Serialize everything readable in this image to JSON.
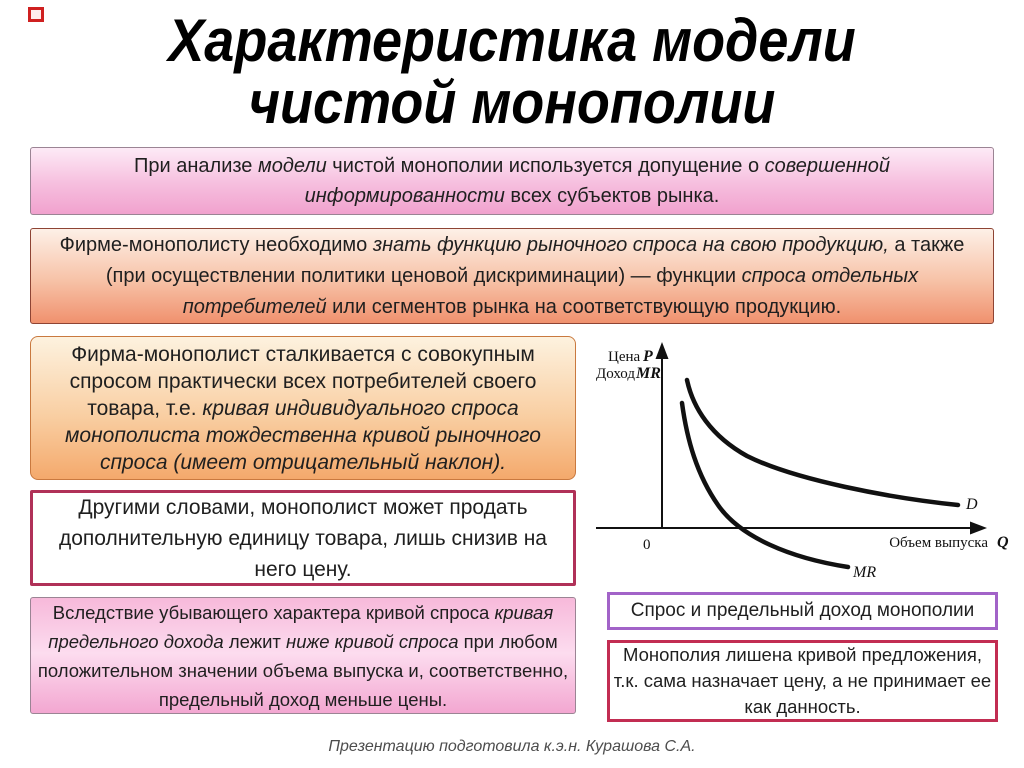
{
  "slide_title": {
    "line1": "Характеристика модели",
    "line2": "чистой монополии"
  },
  "boxes": {
    "assumption": {
      "segments": [
        {
          "t": "При анализе ",
          "i": false
        },
        {
          "t": "модели",
          "i": true
        },
        {
          "t": " чистой монополии используется допущение о ",
          "i": false
        },
        {
          "t": "совершенной информированности",
          "i": true
        },
        {
          "t": " всех субъектов рынка.",
          "i": false
        }
      ]
    },
    "market_demand_knowledge": {
      "segments": [
        {
          "t": "Фирме-монополисту необходимо ",
          "i": false
        },
        {
          "t": "знать функцию рыночного спроса на свою продукцию,",
          "i": true
        },
        {
          "t": " а также (при осуществлении политики ценовой дискриминации) — функции ",
          "i": false
        },
        {
          "t": "спроса отдельных потребителей",
          "i": true
        },
        {
          "t": " или сегментов рынка на соответствующую продукцию.",
          "i": false
        }
      ]
    },
    "aggregate_demand": {
      "segments": [
        {
          "t": "Фирма-монополист сталкивается с совокупным спросом практически всех потребителей своего товара, т.е. ",
          "i": false
        },
        {
          "t": "кривая индивидуального спроса монополиста тождественна кривой рыночного спроса (имеет отрицательный наклон).",
          "i": true
        }
      ]
    },
    "in_other_words": {
      "segments": [
        {
          "t": "Другими словами, монополист может продать дополнительную единицу товара, лишь снизив на него цену.",
          "i": false
        }
      ]
    },
    "marginal_revenue_below": {
      "segments": [
        {
          "t": "Вследствие убывающего характера кривой спроса ",
          "i": false
        },
        {
          "t": "кривая предельного дохода",
          "i": true
        },
        {
          "t": " лежит ",
          "i": false
        },
        {
          "t": "ниже кривой спроса",
          "i": true
        },
        {
          "t": " при любом положительном значении объема выпуска и, соответственно, предельный доход меньше цены.",
          "i": false
        }
      ]
    },
    "graph_caption": {
      "text": "Спрос и предельный доход монополии"
    },
    "no_supply_curve": {
      "text": "Монополия лишена кривой предложения, т.к. сама назначает цену, а не принимает ее как данность."
    }
  },
  "graph": {
    "ylabel_price": "Цена",
    "ylabel_price_sym": "P",
    "ylabel_income": "Доход",
    "ylabel_income_sym": "MR",
    "origin_label": "0",
    "xlabel": "Объем выпуска",
    "xlabel_sym": "Q",
    "demand_label": "D",
    "mr_label": "MR"
  },
  "chart_data": {
    "type": "line",
    "title": "Спрос и предельный доход монополии",
    "xlabel": "Объем выпуска Q",
    "ylabel": "Цена P / Доход MR",
    "axes_numeric": false,
    "grid": false,
    "origin_label": "0",
    "legend_position": "labels at curve ends",
    "series": [
      {
        "name": "D (кривая спроса)",
        "shape": "убывающая выпуклая гипербола, остаётся выше оси выпуска",
        "relative_points": [
          [
            0.07,
            0.95
          ],
          [
            0.12,
            0.72
          ],
          [
            0.22,
            0.5
          ],
          [
            0.38,
            0.33
          ],
          [
            0.58,
            0.22
          ],
          [
            0.78,
            0.16
          ],
          [
            0.93,
            0.13
          ]
        ]
      },
      {
        "name": "MR (кривая предельного дохода)",
        "shape": "убывает круче кривой спроса, пересекает ось выпуска и уходит ниже нуля",
        "relative_points": [
          [
            0.06,
            0.8
          ],
          [
            0.11,
            0.55
          ],
          [
            0.18,
            0.3
          ],
          [
            0.26,
            0.08
          ],
          [
            0.31,
            0.0
          ],
          [
            0.42,
            -0.14
          ],
          [
            0.55,
            -0.25
          ]
        ]
      }
    ]
  },
  "footer": {
    "credit": "Презентацию подготовила к.э.н. Курашова С.А."
  },
  "colors": {
    "pink_box_border": "#9b8494",
    "pink_box_top": "#fdeaf6",
    "pink_box_bottom": "#f1a2ce",
    "orange_box_border": "#8e4434",
    "orange_box_top": "#fdf0e7",
    "orange_box_bottom": "#f0916e",
    "peach_box_border": "#c9793f",
    "peach_box_top": "#fdf2df",
    "peach_box_bottom": "#f4a96c",
    "crimson_border": "#b03158",
    "magenta_box_top": "#f7b9da",
    "magenta_box_bottom": "#f3a7d1",
    "purple_border": "#a263c8",
    "right_crimson_border": "#c22d52",
    "red_marker": "#cf2020",
    "curve_color": "#111111",
    "text_color": "#1f1f1f",
    "footer_color": "#4d4d4d"
  }
}
